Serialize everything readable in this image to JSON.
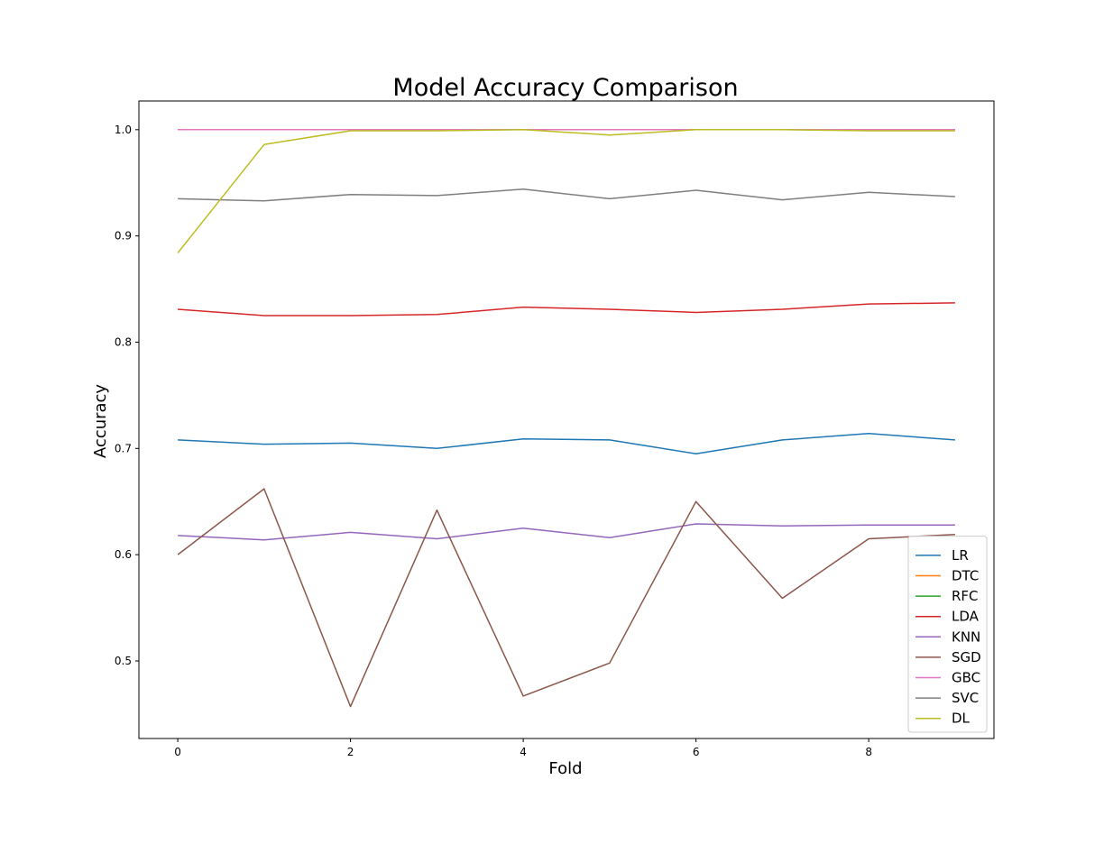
{
  "chart_data": {
    "type": "line",
    "title": "Model Accuracy Comparison",
    "xlabel": "Fold",
    "ylabel": "Accuracy",
    "xlim": [
      -0.45,
      9.45
    ],
    "ylim": [
      0.427,
      1.027
    ],
    "x": [
      0,
      1,
      2,
      3,
      4,
      5,
      6,
      7,
      8,
      9
    ],
    "xticks": [
      0,
      2,
      4,
      6,
      8
    ],
    "yticks": [
      0.5,
      0.6,
      0.7,
      0.8,
      0.9,
      1.0
    ],
    "ytick_labels": [
      "0.5",
      "0.6",
      "0.7",
      "0.8",
      "0.9",
      "1.0"
    ],
    "grid": false,
    "legend_position": "lower-right",
    "series": [
      {
        "name": "LR",
        "color": "#1f77b4",
        "values": [
          0.708,
          0.704,
          0.705,
          0.7,
          0.709,
          0.708,
          0.695,
          0.708,
          0.714,
          0.708
        ]
      },
      {
        "name": "DTC",
        "color": "#ff7f0e",
        "values": [
          1.0,
          1.0,
          1.0,
          1.0,
          1.0,
          1.0,
          1.0,
          1.0,
          1.0,
          1.0
        ]
      },
      {
        "name": "RFC",
        "color": "#2ca02c",
        "values": [
          1.0,
          1.0,
          1.0,
          1.0,
          1.0,
          1.0,
          1.0,
          1.0,
          1.0,
          1.0
        ]
      },
      {
        "name": "LDA",
        "color": "#d62728",
        "values": [
          0.831,
          0.825,
          0.825,
          0.826,
          0.833,
          0.831,
          0.828,
          0.831,
          0.836,
          0.837
        ]
      },
      {
        "name": "KNN",
        "color": "#9467bd",
        "values": [
          0.618,
          0.614,
          0.621,
          0.615,
          0.625,
          0.616,
          0.629,
          0.627,
          0.628,
          0.628
        ]
      },
      {
        "name": "SGD",
        "color": "#8c564b",
        "values": [
          0.6,
          0.662,
          0.457,
          0.642,
          0.467,
          0.498,
          0.65,
          0.559,
          0.615,
          0.619
        ]
      },
      {
        "name": "GBC",
        "color": "#e377c2",
        "values": [
          1.0,
          1.0,
          1.0,
          1.0,
          1.0,
          1.0,
          1.0,
          1.0,
          1.0,
          1.0
        ]
      },
      {
        "name": "SVC",
        "color": "#7f7f7f",
        "values": [
          0.935,
          0.933,
          0.939,
          0.938,
          0.944,
          0.935,
          0.943,
          0.934,
          0.941,
          0.937
        ]
      },
      {
        "name": "DL",
        "color": "#bcbd22",
        "values": [
          0.884,
          0.986,
          0.999,
          0.999,
          1.0,
          0.995,
          1.0,
          1.0,
          0.999,
          0.999
        ]
      }
    ]
  }
}
